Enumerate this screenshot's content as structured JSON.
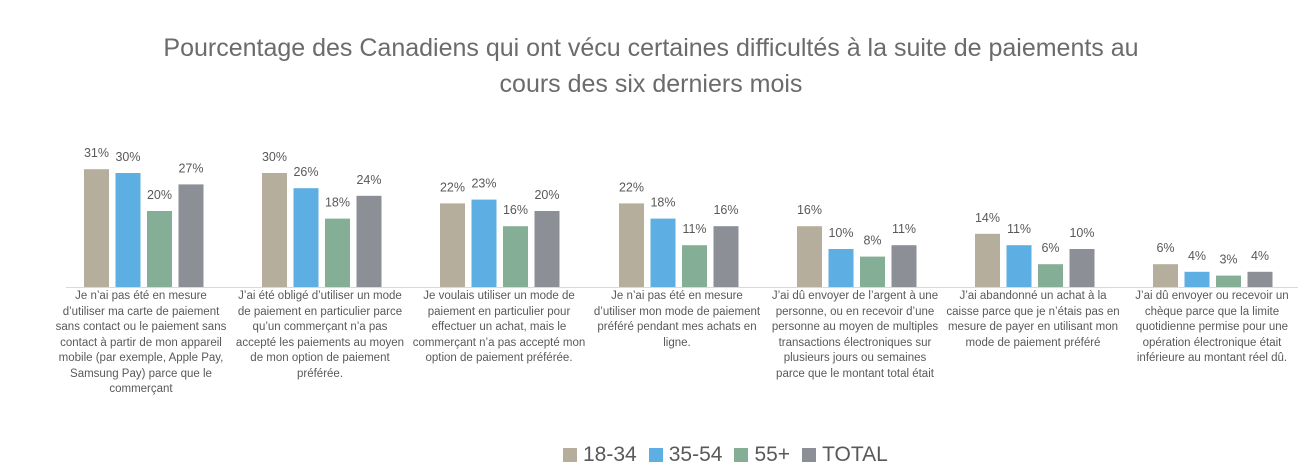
{
  "chart_data": {
    "type": "bar",
    "title": "Pourcentage des Canadiens qui ont vécu certaines difficultés à la suite de paiements au cours des six derniers mois",
    "title_lines": [
      "Pourcentage des Canadiens qui ont vécu certaines difficultés à la suite de paiements au",
      "cours des six derniers mois"
    ],
    "categories": [
      "Je n’ai pas été en mesure d’utiliser ma carte de paiement sans contact ou le paiement sans contact à partir de mon appareil mobile (par exemple, Apple Pay, Samsung Pay) parce que le commerçant",
      "J’ai été obligé d’utiliser un mode de paiement en particulier parce qu’un commerçant n’a pas accepté les paiements au moyen de mon option de paiement préférée.",
      "Je voulais utiliser un mode de paiement en particulier pour effectuer un achat, mais le commerçant n’a pas accepté mon option de paiement préférée.",
      "Je n’ai pas été en mesure d’utiliser mon mode de paiement préféré pendant mes achats en ligne.",
      "J’ai dû envoyer de l’argent à une personne, ou en recevoir d’une personne au moyen de multiples transactions électroniques sur plusieurs jours ou semaines parce que le montant total était",
      "J’ai abandonné un achat à la caisse parce que je n’étais pas en mesure de payer en utilisant mon mode de paiement préféré",
      "J’ai dû envoyer ou recevoir un chèque parce que la limite quotidienne permise pour une opération électronique était inférieure au montant réel dû."
    ],
    "series": [
      {
        "name": "18-34",
        "color": "#b5ae9c",
        "values": [
          31,
          30,
          22,
          22,
          16,
          14,
          6
        ],
        "labels": [
          "31%",
          "30%",
          "22%",
          "22%",
          "16%",
          "14%",
          "6%"
        ]
      },
      {
        "name": "35-54",
        "color": "#5daee3",
        "values": [
          30,
          26,
          23,
          18,
          10,
          11,
          4
        ],
        "labels": [
          "30%",
          "26%",
          "23%",
          "18%",
          "10%",
          "11%",
          "4%"
        ]
      },
      {
        "name": "55+",
        "color": "#84ae96",
        "values": [
          20,
          18,
          16,
          11,
          8,
          6,
          3
        ],
        "labels": [
          "20%",
          "18%",
          "16%",
          "11%",
          "8%",
          "6%",
          "3%"
        ]
      },
      {
        "name": "TOTAL",
        "color": "#8c8f96",
        "values": [
          27,
          24,
          20,
          16,
          11,
          10,
          4
        ],
        "labels": [
          "27%",
          "24%",
          "20%",
          "16%",
          "11%",
          "10%",
          "4%"
        ]
      }
    ],
    "legend_position": "bottom",
    "ylim": [
      0,
      31
    ],
    "grid": false
  }
}
